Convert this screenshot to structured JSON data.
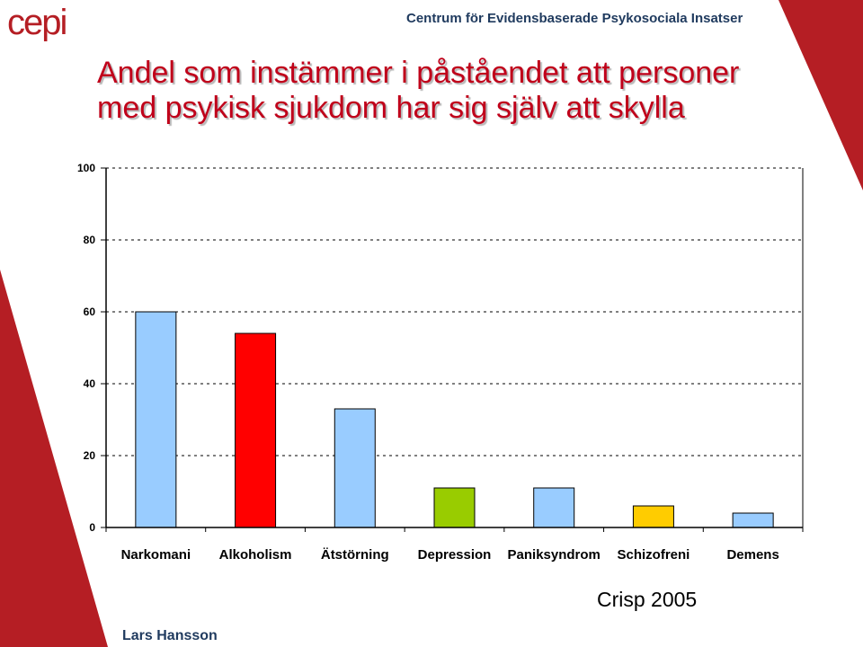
{
  "header": {
    "logo_text": "cepi",
    "organization": "Centrum för Evidensbaserade Psykosociala Insatser"
  },
  "slide": {
    "title_line1": "Andel som instämmer i påståendet att personer",
    "title_line2": "med psykisk sjukdom har sig själv att skylla",
    "source": "Crisp 2005",
    "author": "Lars Hansson"
  },
  "colors": {
    "accent": "#c0001a",
    "brand_blue": "#1f3a5e",
    "decoration_red": "#b51e24"
  },
  "chart_data": {
    "type": "bar",
    "categories": [
      "Narkomani",
      "Alkoholism",
      "Ätstörning",
      "Depression",
      "Paniksyndrom",
      "Schizofreni",
      "Demens"
    ],
    "values": [
      60,
      54,
      33,
      11,
      11,
      6,
      4
    ],
    "colors": [
      "#99ccff",
      "#ff0000",
      "#99ccff",
      "#99cc00",
      "#99ccff",
      "#ffcc00",
      "#99ccff"
    ],
    "yticks": [
      "0",
      "20",
      "40",
      "60",
      "80",
      "100"
    ],
    "ylim": [
      0,
      100
    ],
    "grid": "horizontal dashed",
    "legend": "none"
  }
}
